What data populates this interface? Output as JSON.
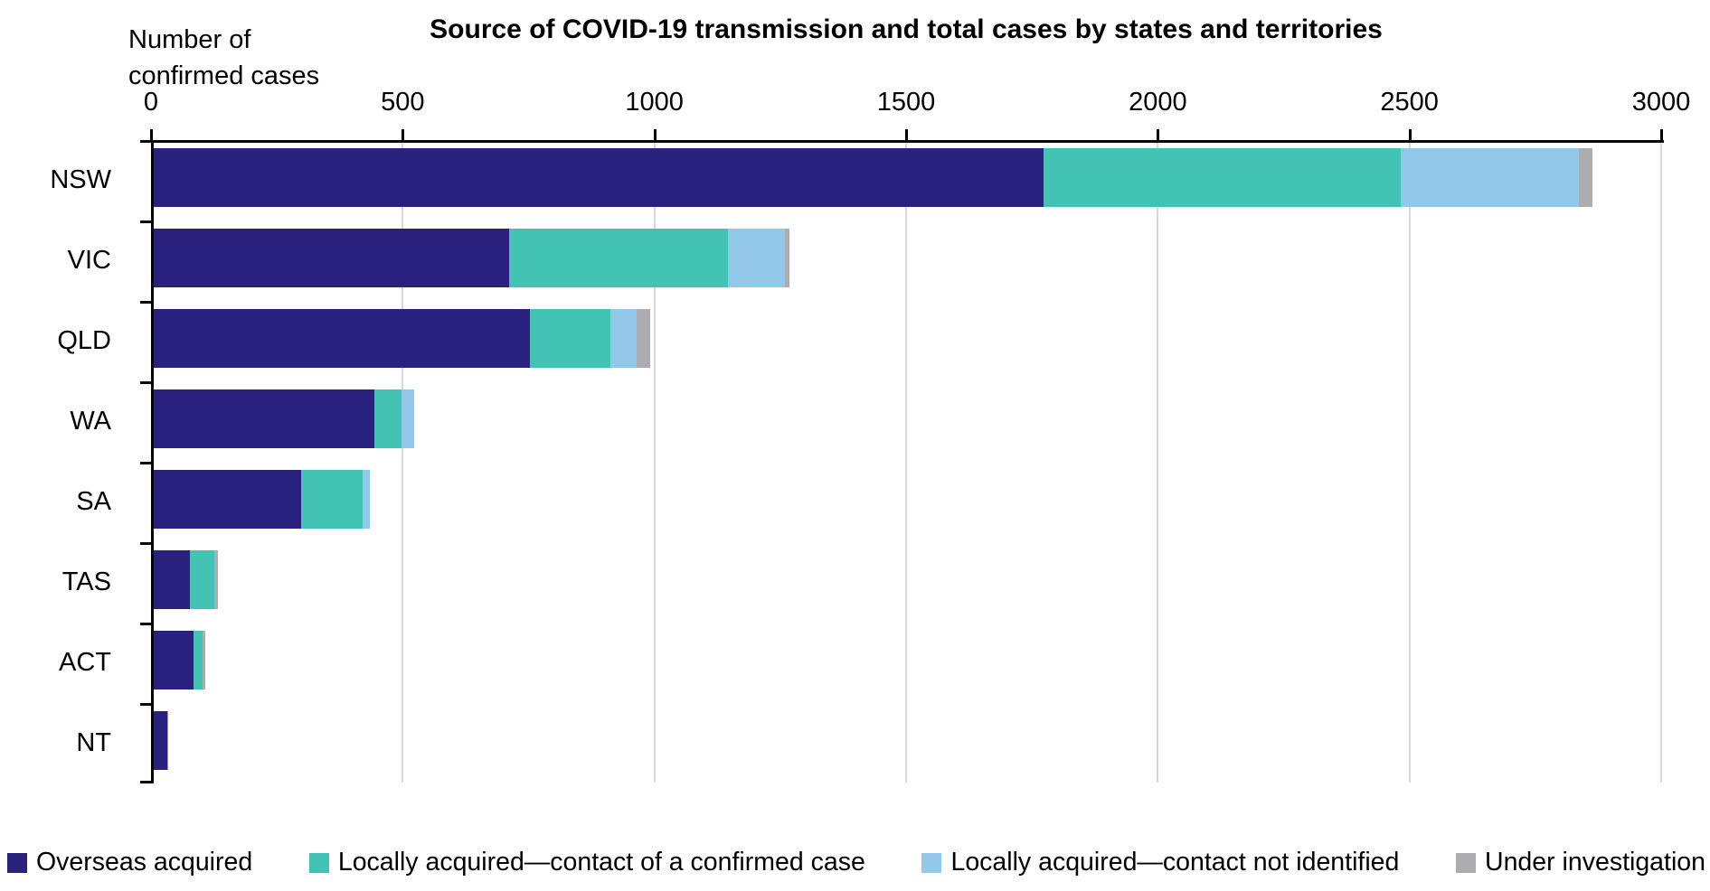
{
  "chart_data": {
    "type": "bar",
    "orientation": "horizontal",
    "stacked": true,
    "title": "Source of COVID-19 transmission and total cases by states and territories",
    "axis_unit_label": "Number of confirmed cases",
    "categories": [
      "NSW",
      "VIC",
      "QLD",
      "WA",
      "SA",
      "TAS",
      "ACT",
      "NT"
    ],
    "series": [
      {
        "name": "Overseas acquired",
        "color": "#29217d",
        "values": [
          1767,
          706,
          748,
          438,
          293,
          72,
          79,
          27
        ]
      },
      {
        "name": "Locally acquired—contact of a confirmed case",
        "color": "#43c3b4",
        "values": [
          710,
          434,
          159,
          55,
          122,
          48,
          18,
          2
        ]
      },
      {
        "name": "Locally acquired—contact not identified",
        "color": "#94c8eb",
        "values": [
          354,
          114,
          53,
          24,
          14,
          0,
          0,
          0
        ]
      },
      {
        "name": "Under investigation",
        "color": "#adadaf",
        "values": [
          27,
          9,
          26,
          0,
          0,
          7,
          5,
          0
        ]
      }
    ],
    "totals": [
      2858,
      1263,
      986,
      517,
      429,
      127,
      102,
      29
    ],
    "xlim": [
      0,
      3000
    ],
    "xticks": [
      0,
      500,
      1000,
      1500,
      2000,
      2500,
      3000
    ],
    "grid": true,
    "gridline_color": "#d9d9d9",
    "axis_color": "#000000",
    "legend_position": "bottom"
  }
}
